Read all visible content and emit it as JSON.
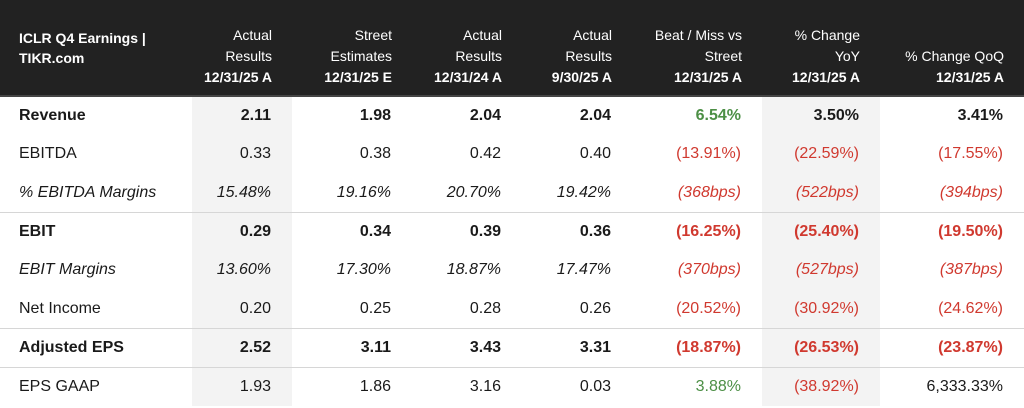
{
  "header": {
    "title": "ICLR Q4 Earnings | TIKR.com",
    "columns": [
      {
        "top": "Actual Results",
        "date": "12/31/25 A"
      },
      {
        "top": "Street Estimates",
        "date": "12/31/25 E"
      },
      {
        "top": "Actual Results",
        "date": "12/31/24 A"
      },
      {
        "top": "Actual Results",
        "date": "9/30/25 A"
      },
      {
        "top": "Beat / Miss vs Street",
        "date": "12/31/25 A"
      },
      {
        "top": "% Change YoY",
        "date": "12/31/25 A"
      },
      {
        "top": "% Change QoQ",
        "date": "12/31/25 A"
      }
    ]
  },
  "rows": [
    {
      "label": "Revenue",
      "values": [
        "2.11",
        "1.98",
        "2.04",
        "2.04",
        "6.54%",
        "3.50%",
        "3.41%"
      ]
    },
    {
      "label": "EBITDA",
      "values": [
        "0.33",
        "0.38",
        "0.42",
        "0.40",
        "(13.91%)",
        "(22.59%)",
        "(17.55%)"
      ]
    },
    {
      "label": "% EBITDA Margins",
      "values": [
        "15.48%",
        "19.16%",
        "20.70%",
        "19.42%",
        "(368bps)",
        "(522bps)",
        "(394bps)"
      ]
    },
    {
      "label": "EBIT",
      "values": [
        "0.29",
        "0.34",
        "0.39",
        "0.36",
        "(16.25%)",
        "(25.40%)",
        "(19.50%)"
      ]
    },
    {
      "label": "EBIT Margins",
      "values": [
        "13.60%",
        "17.30%",
        "18.87%",
        "17.47%",
        "(370bps)",
        "(527bps)",
        "(387bps)"
      ]
    },
    {
      "label": "Net Income",
      "values": [
        "0.20",
        "0.25",
        "0.28",
        "0.26",
        "(20.52%)",
        "(30.92%)",
        "(24.62%)"
      ]
    },
    {
      "label": "Adjusted EPS",
      "values": [
        "2.52",
        "3.11",
        "3.43",
        "3.31",
        "(18.87%)",
        "(26.53%)",
        "(23.87%)"
      ]
    },
    {
      "label": "EPS GAAP",
      "values": [
        "1.93",
        "1.86",
        "3.16",
        "0.03",
        "3.88%",
        "(38.92%)",
        "6,333.33%"
      ]
    }
  ],
  "colors": {
    "positive": "#4c8f45",
    "negative": "#d0392f",
    "header_bg": "#222222",
    "shade": "#f3f3f3"
  }
}
